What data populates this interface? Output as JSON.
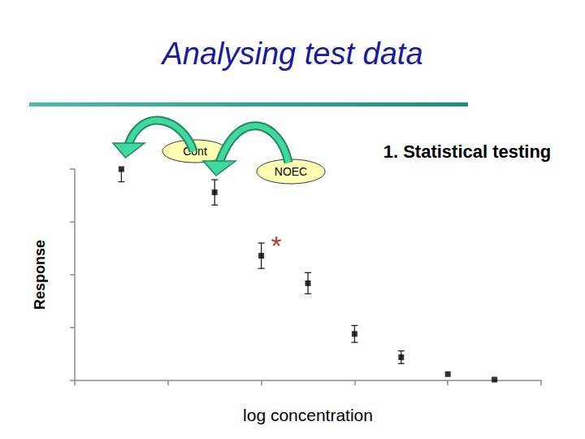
{
  "chart_data": {
    "type": "scatter",
    "title": "Analysing test data",
    "x_label": "log concentration",
    "y_label": "Response",
    "x": [
      0.5,
      1.5,
      2,
      2.5,
      3,
      3.5,
      4,
      4.5
    ],
    "values": [
      100,
      89,
      59,
      46,
      22,
      11,
      3,
      0.4
    ],
    "errors": [
      6,
      6,
      6,
      5,
      4,
      3,
      0,
      0
    ],
    "color": "#000000",
    "marker": "square",
    "xlim": [
      0,
      5
    ],
    "xticks": [
      0,
      1,
      2,
      3,
      4,
      5
    ],
    "ylim": [
      0,
      100
    ],
    "yticks": [
      0,
      25,
      50,
      75,
      100
    ],
    "grid": false,
    "tick_labels": false,
    "annotations": [
      {
        "text": "Cont"
      },
      {
        "text": "NOEC"
      },
      {
        "text": "1. Statistical testing"
      },
      {
        "text": "*"
      }
    ]
  }
}
